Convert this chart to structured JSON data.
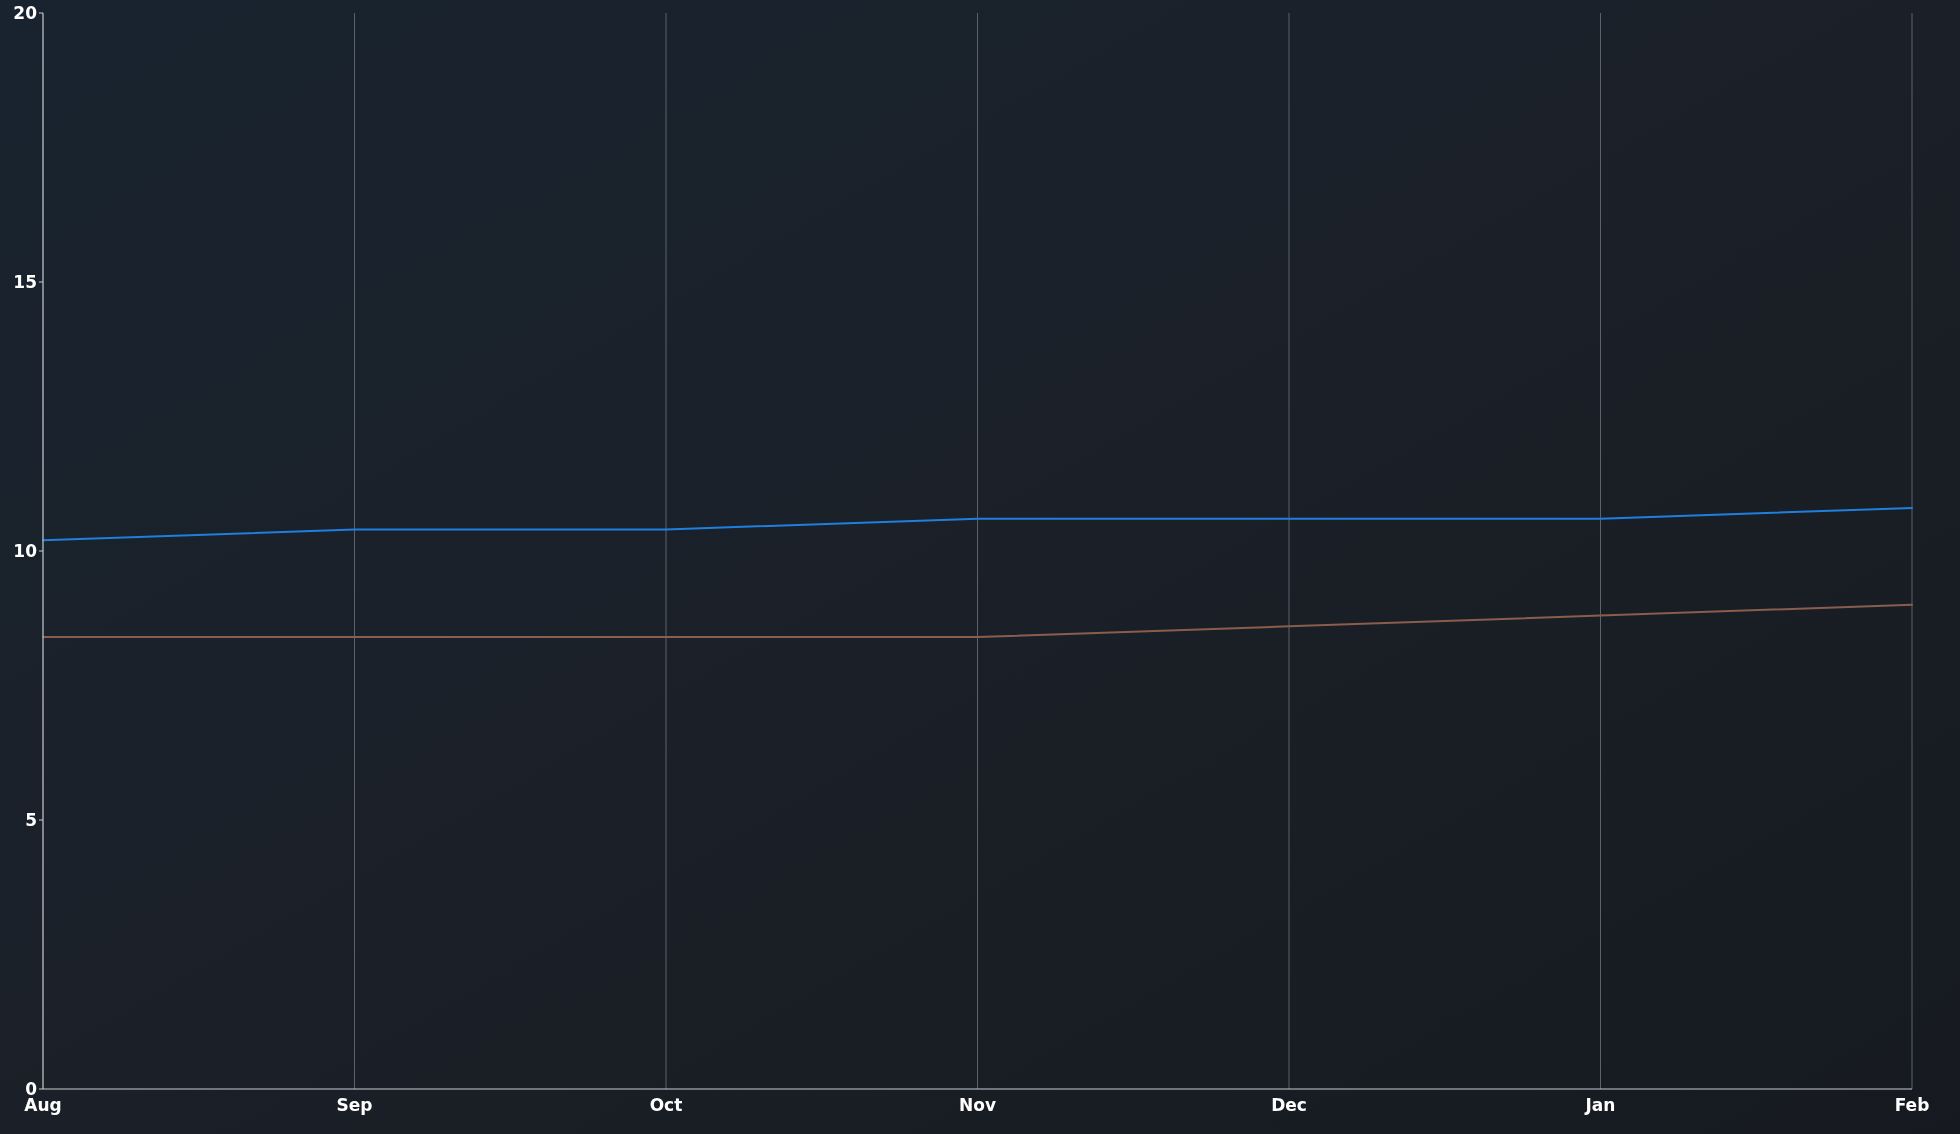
{
  "chart_data": {
    "type": "line",
    "categories": [
      "Aug",
      "Sep",
      "Oct",
      "Nov",
      "Dec",
      "Jan",
      "Feb"
    ],
    "series": [
      {
        "color": "#1f7fe0",
        "values": [
          10.2,
          10.4,
          10.4,
          10.6,
          10.6,
          10.6,
          10.8
        ]
      },
      {
        "color": "#8a5d4d",
        "values": [
          8.4,
          8.4,
          8.4,
          8.4,
          8.6,
          8.8,
          9.0
        ]
      }
    ],
    "ylim": [
      0,
      20
    ],
    "yticks": [
      0,
      5,
      10,
      15,
      20
    ],
    "grid": "x",
    "line_style": "solid"
  }
}
